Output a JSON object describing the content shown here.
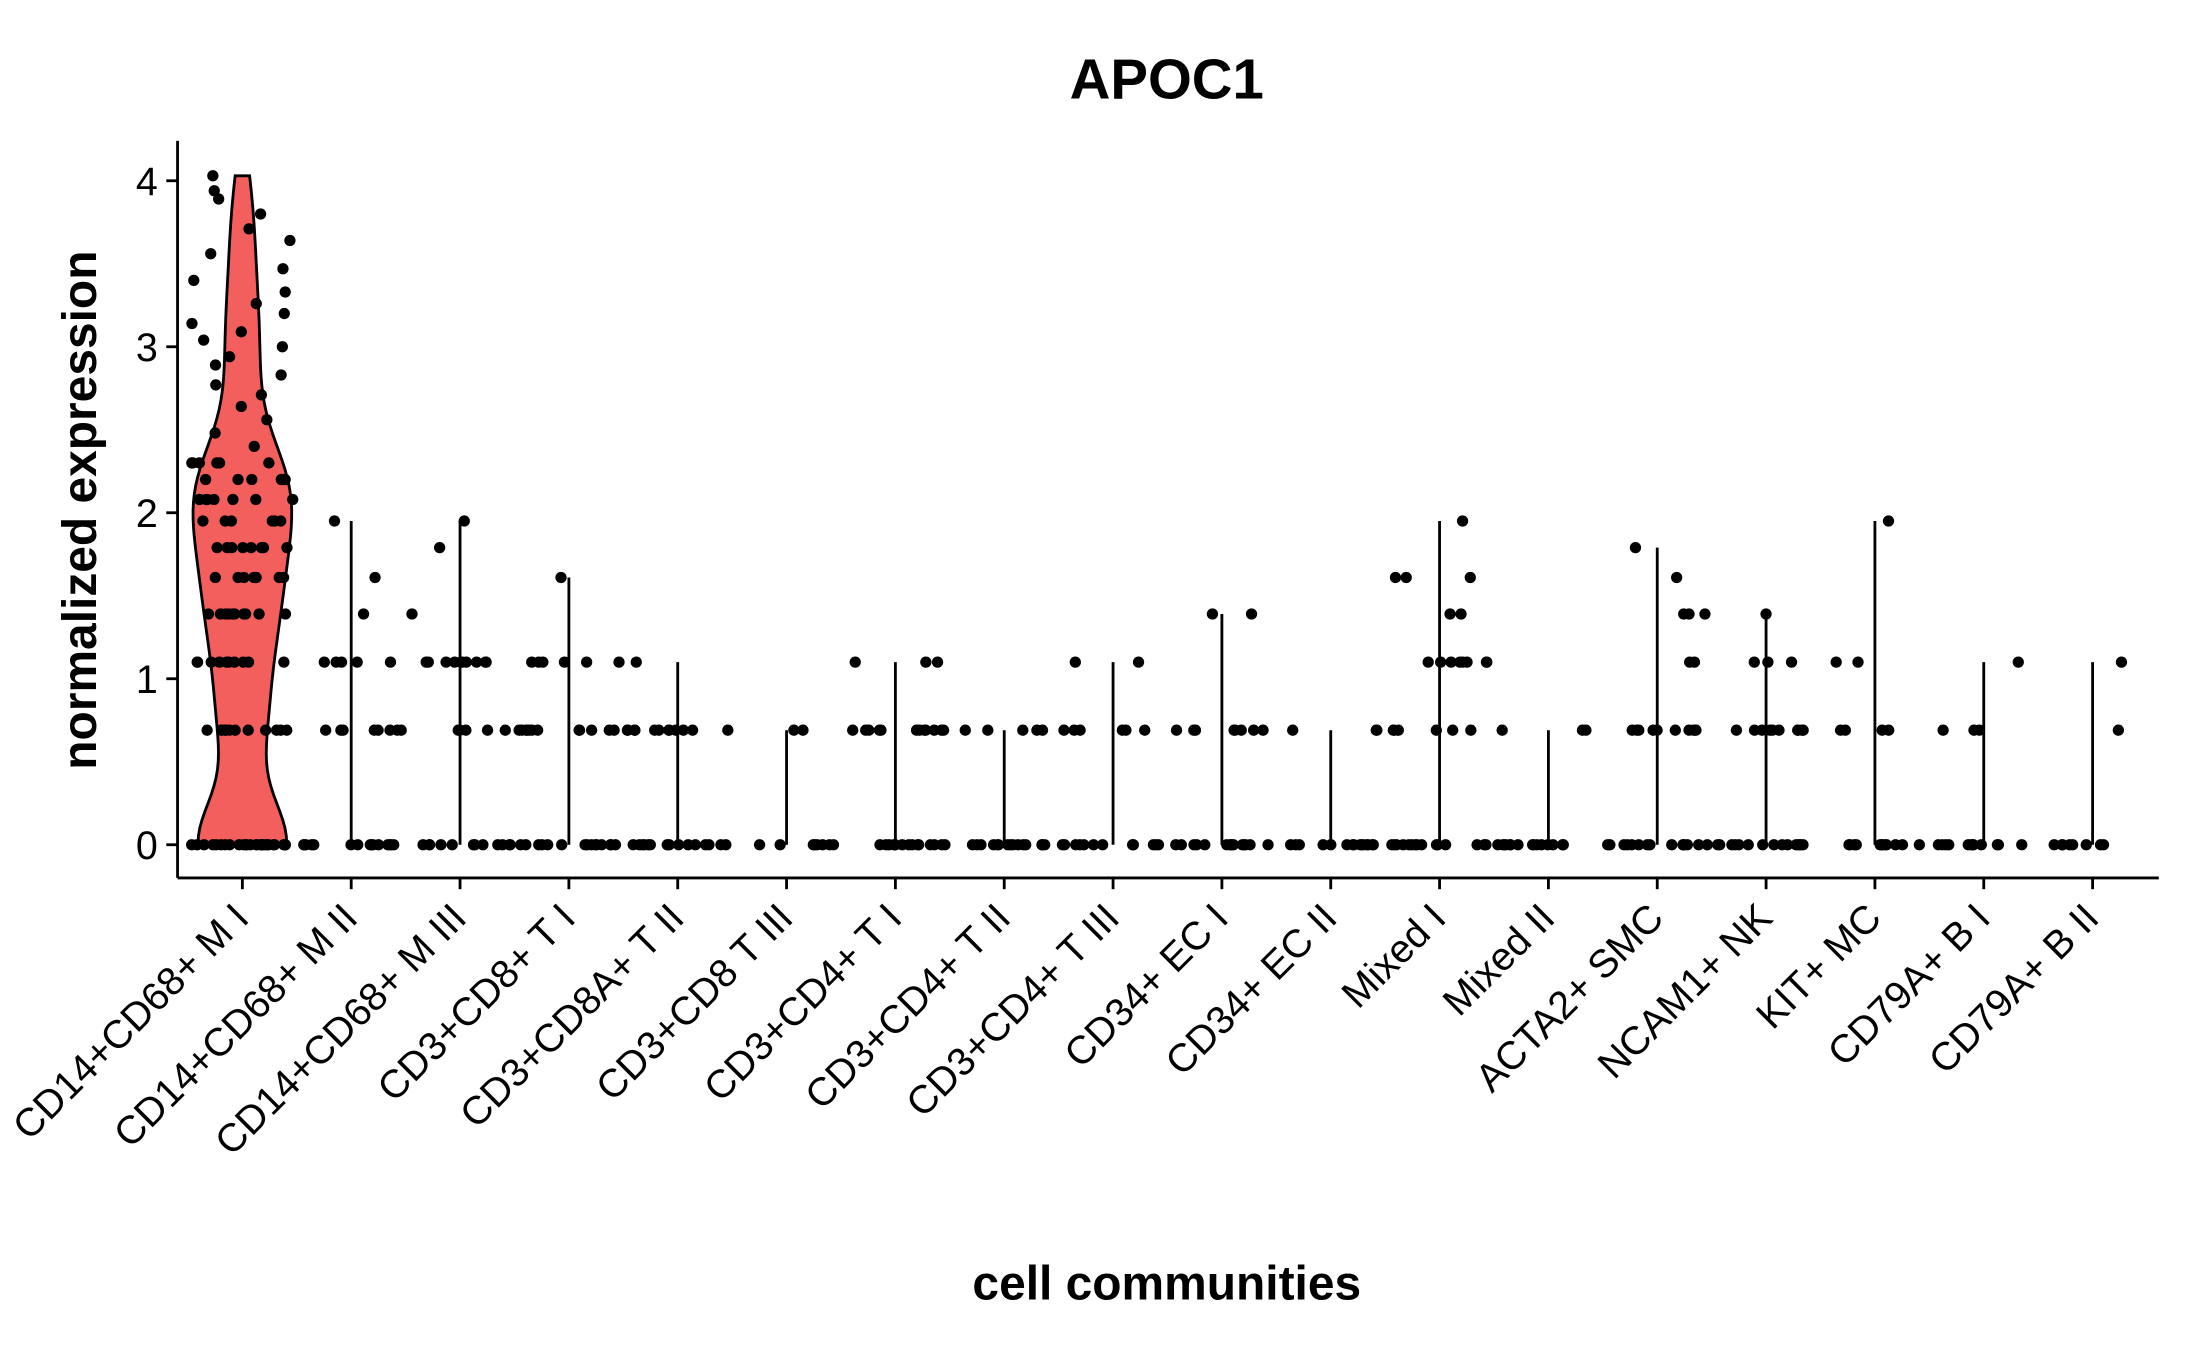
{
  "chart_data": {
    "type": "violin",
    "title": "APOC1",
    "x_label": "cell communities",
    "y_label": "normalized expression",
    "color": "#f25f5c",
    "categories": [
      "CD14+CD68+ M I",
      "CD14+CD68+ M II",
      "CD14+CD68+ M III",
      "CD3+CD8+ T I",
      "CD3+CD8A+ T II",
      "CD3+CD8 T III",
      "CD3+CD4+ T I",
      "CD3+CD4+ T II",
      "CD3+CD4+ T III",
      "CD34+ EC I",
      "CD34+ EC II",
      "Mixed I",
      "Mixed II",
      "ACTA2+ SMC",
      "NCAM1+ NK",
      "KIT+ MC",
      "CD79A+ B I",
      "CD79A+ B II"
    ],
    "values": [
      [
        0,
        0,
        0,
        0,
        0,
        0,
        0,
        0,
        0,
        0,
        0,
        0,
        0,
        0,
        0,
        0,
        0,
        0,
        0,
        0,
        0,
        0,
        0,
        0,
        0,
        0,
        0,
        0,
        0,
        0,
        0.69,
        0.69,
        0.69,
        0.69,
        0.69,
        0.69,
        0.69,
        0.69,
        0.69,
        0.69,
        0.69,
        0.69,
        1.1,
        1.1,
        1.1,
        1.1,
        1.1,
        1.1,
        1.1,
        1.1,
        1.1,
        1.1,
        1.39,
        1.39,
        1.39,
        1.39,
        1.39,
        1.39,
        1.39,
        1.39,
        1.39,
        1.39,
        1.61,
        1.61,
        1.61,
        1.61,
        1.61,
        1.61,
        1.61,
        1.61,
        1.79,
        1.79,
        1.79,
        1.79,
        1.79,
        1.79,
        1.79,
        1.79,
        1.95,
        1.95,
        1.95,
        1.95,
        1.95,
        1.95,
        2.08,
        2.08,
        2.08,
        2.08,
        2.08,
        2.08,
        2.08,
        2.08,
        2.2,
        2.2,
        2.2,
        2.2,
        2.2,
        2.2,
        2.2,
        2.2,
        2.3,
        2.3,
        2.3,
        2.3,
        2.3,
        2.3,
        2.4,
        2.48,
        2.56,
        2.64,
        2.71,
        2.77,
        2.83,
        2.89,
        2.94,
        3.0,
        3.04,
        3.09,
        3.14,
        3.2,
        3.26,
        3.33,
        3.4,
        3.47,
        3.56,
        3.64,
        3.71,
        3.8,
        3.89,
        3.94,
        4.03
      ],
      [
        0,
        0,
        0,
        0,
        0,
        0,
        0,
        0,
        0,
        0,
        0,
        0,
        0,
        0,
        0,
        0.69,
        0.69,
        0.69,
        0.69,
        0.69,
        0.69,
        0.69,
        0.69,
        1.1,
        1.1,
        1.1,
        1.1,
        1.1,
        1.39,
        1.61,
        1.95
      ],
      [
        0,
        0,
        0,
        0,
        0,
        0,
        0,
        0,
        0,
        0,
        0,
        0,
        0.69,
        0.69,
        0.69,
        0.69,
        0.69,
        1.1,
        1.1,
        1.1,
        1.1,
        1.1,
        1.1,
        1.1,
        1.1,
        1.1,
        1.1,
        1.39,
        1.79,
        1.95
      ],
      [
        0,
        0,
        0,
        0,
        0,
        0,
        0,
        0,
        0,
        0,
        0,
        0,
        0,
        0,
        0,
        0.69,
        0.69,
        0.69,
        0.69,
        0.69,
        0.69,
        0.69,
        0.69,
        0.69,
        0.69,
        0.69,
        0.69,
        1.1,
        1.1,
        1.1,
        1.1,
        1.1,
        1.1,
        1.61
      ],
      [
        0,
        0,
        0,
        0,
        0,
        0,
        0,
        0,
        0,
        0,
        0,
        0,
        0,
        0,
        0,
        0.69,
        0.69,
        0.69,
        0.69,
        0.69,
        0.69,
        0.69,
        0.69,
        0.69,
        0.69,
        0.69,
        0.69,
        1.1
      ],
      [
        0,
        0,
        0,
        0,
        0,
        0,
        0,
        0,
        0.69,
        0.69
      ],
      [
        0,
        0,
        0,
        0,
        0,
        0,
        0,
        0,
        0,
        0,
        0,
        0,
        0,
        0,
        0,
        0.69,
        0.69,
        0.69,
        0.69,
        0.69,
        0.69,
        0.69,
        0.69,
        0.69,
        0.69,
        0.69,
        0.69,
        1.1,
        1.1,
        1.1
      ],
      [
        0,
        0,
        0,
        0,
        0,
        0,
        0,
        0,
        0,
        0,
        0,
        0,
        0,
        0,
        0,
        0.69,
        0.69,
        0.69,
        0.69,
        0.69
      ],
      [
        0,
        0,
        0,
        0,
        0,
        0,
        0,
        0,
        0,
        0,
        0,
        0,
        0.69,
        0.69,
        0.69,
        0.69,
        0.69,
        0.69,
        1.1,
        1.1
      ],
      [
        0,
        0,
        0,
        0,
        0,
        0,
        0,
        0,
        0,
        0,
        0,
        0,
        0,
        0,
        0,
        0.69,
        0.69,
        0.69,
        0.69,
        0.69,
        0.69,
        0.69,
        0.69,
        1.39,
        1.39
      ],
      [
        0,
        0,
        0,
        0,
        0,
        0,
        0,
        0,
        0,
        0,
        0,
        0,
        0,
        0,
        0,
        0.69,
        0.69,
        0.69
      ],
      [
        0,
        0,
        0,
        0,
        0,
        0,
        0,
        0,
        0,
        0,
        0,
        0,
        0,
        0,
        0,
        0.69,
        0.69,
        0.69,
        0.69,
        0.69,
        0.69,
        1.1,
        1.1,
        1.1,
        1.1,
        1.1,
        1.1,
        1.1,
        1.1,
        1.39,
        1.39,
        1.61,
        1.61,
        1.61,
        1.95
      ],
      [
        0,
        0,
        0,
        0,
        0,
        0,
        0,
        0,
        0,
        0,
        0,
        0,
        0,
        0,
        0,
        0.69,
        0.69,
        0.69
      ],
      [
        0,
        0,
        0,
        0,
        0,
        0,
        0,
        0,
        0,
        0,
        0,
        0,
        0,
        0,
        0,
        0.69,
        0.69,
        0.69,
        0.69,
        0.69,
        0.69,
        0.69,
        0.69,
        0.69,
        0.69,
        1.1,
        1.1,
        1.39,
        1.39,
        1.39,
        1.61,
        1.79
      ],
      [
        0,
        0,
        0,
        0,
        0,
        0,
        0,
        0,
        0,
        0,
        0,
        0,
        0,
        0,
        0,
        0.69,
        0.69,
        0.69,
        0.69,
        0.69,
        0.69,
        0.69,
        0.69,
        0.69,
        0.69,
        1.1,
        1.1,
        1.1,
        1.39
      ],
      [
        0,
        0,
        0,
        0,
        0,
        0,
        0,
        0,
        0,
        0,
        0,
        0,
        0.69,
        0.69,
        0.69,
        0.69,
        1.1,
        1.1,
        1.95
      ],
      [
        0,
        0,
        0,
        0,
        0,
        0,
        0,
        0,
        0,
        0,
        0,
        0,
        0.69,
        0.69,
        0.69,
        1.1
      ],
      [
        0,
        0,
        0,
        0,
        0,
        0,
        0,
        0,
        0.69,
        1.1
      ]
    ],
    "ylim": [
      -0.2,
      4.24
    ],
    "yticks": [
      0,
      1,
      2,
      3,
      4
    ]
  }
}
